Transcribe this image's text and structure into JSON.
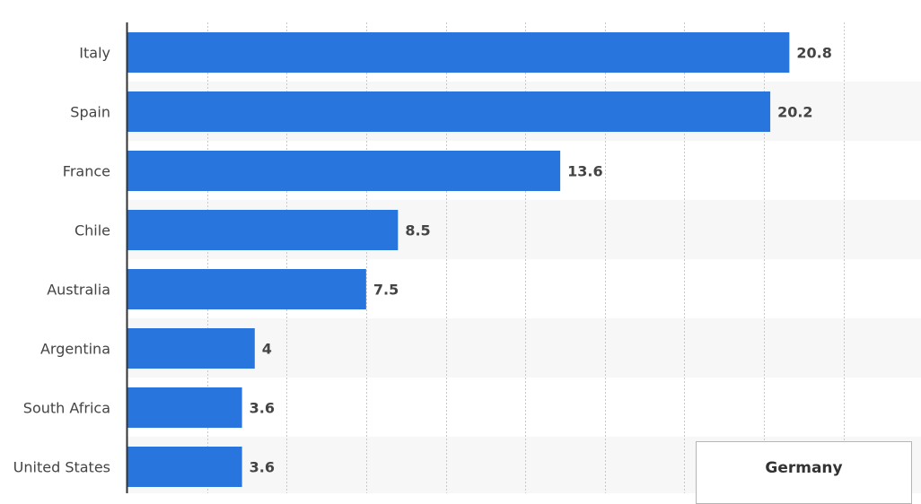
{
  "chart_data": {
    "type": "bar",
    "orientation": "horizontal",
    "categories": [
      "Italy",
      "Spain",
      "France",
      "Chile",
      "Australia",
      "Argentina",
      "South Africa",
      "United States"
    ],
    "values": [
      20.8,
      20.2,
      13.6,
      8.5,
      7.5,
      4,
      3.6,
      3.6
    ],
    "value_labels": [
      "20.8",
      "20.2",
      "13.6",
      "8.5",
      "7.5",
      "4",
      "3.6",
      "3.6"
    ],
    "xlim": [
      0,
      25
    ],
    "grid": true,
    "colors": {
      "bar": "#2876dd",
      "band": "#f7f7f7",
      "grid": "#c9c9c9",
      "axis": "#333333"
    }
  },
  "tooltip": {
    "title": "Germany"
  }
}
